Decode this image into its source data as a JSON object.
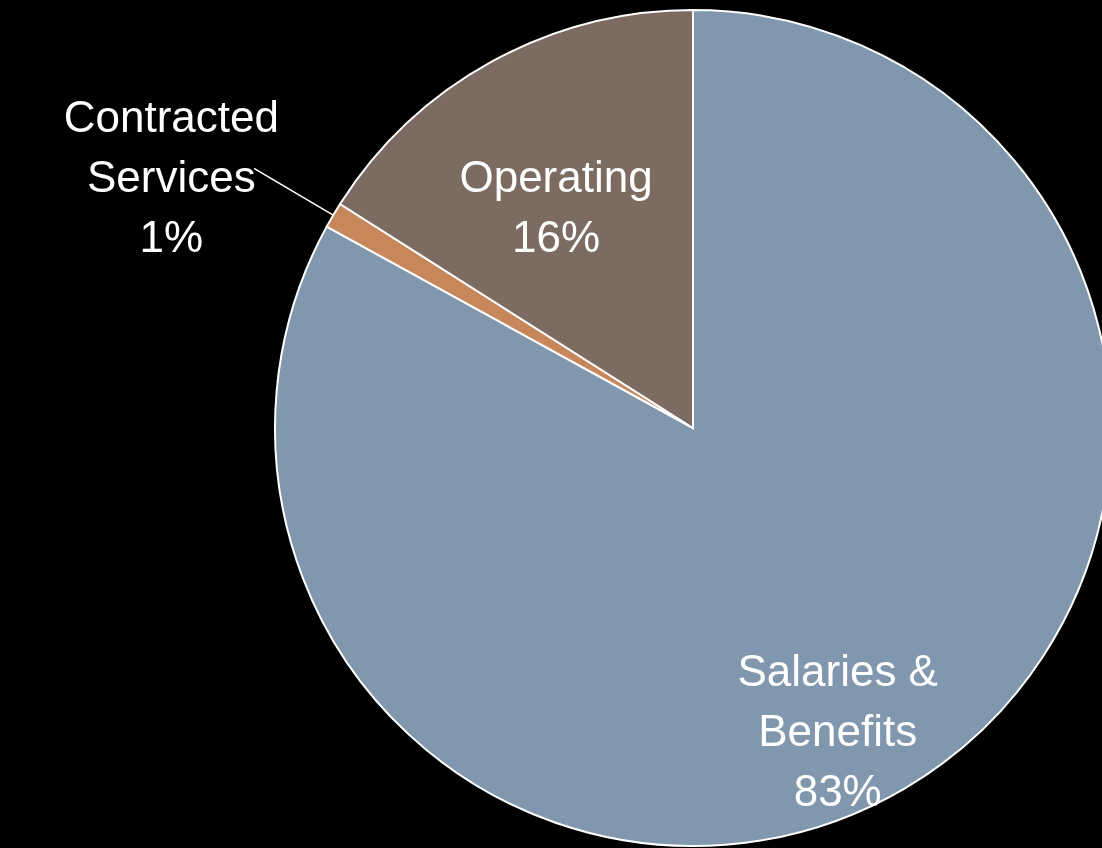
{
  "chart_data": {
    "type": "pie",
    "categories": [
      "Salaries & Benefits",
      "Contracted Services",
      "Operating"
    ],
    "values": [
      83,
      1,
      16
    ],
    "colors": [
      "#8097ae",
      "#c8875a",
      "#7b6b61"
    ],
    "value_labels": [
      "83%",
      "1%",
      "16%"
    ]
  }
}
